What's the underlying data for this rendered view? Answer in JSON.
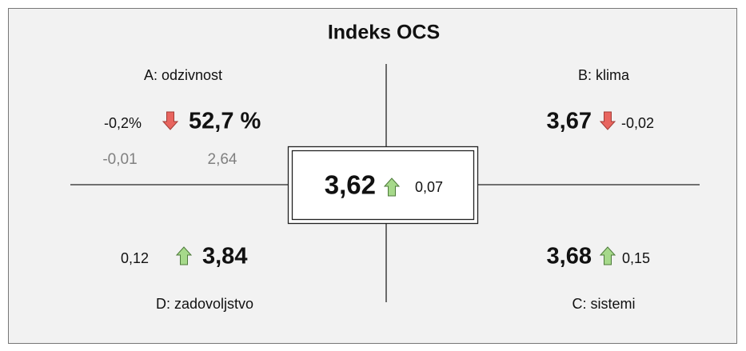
{
  "title": "Indeks OCS",
  "center": {
    "value": "3,62",
    "trend": "up",
    "change": "0,07"
  },
  "quadrants": {
    "a": {
      "label": "A: odzivnost",
      "change": "-0,2%",
      "trend": "down",
      "value": "52,7 %",
      "sub": [
        "-0,01",
        "2,64"
      ]
    },
    "b": {
      "label": "B: klima",
      "value": "3,67",
      "trend": "down",
      "change": "-0,02"
    },
    "c": {
      "label": "C: sistemi",
      "value": "3,68",
      "trend": "up",
      "change": "0,15"
    },
    "d": {
      "label": "D: zadovoljstvo",
      "change": "0,12",
      "trend": "up",
      "value": "3,84"
    }
  }
}
